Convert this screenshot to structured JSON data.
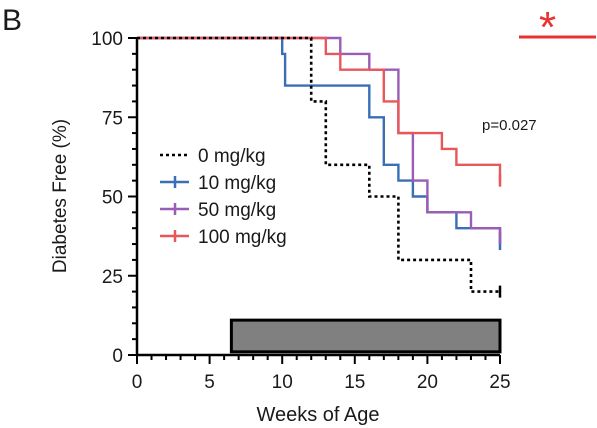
{
  "panel_label": "B",
  "significance_mark": "*",
  "colors": {
    "axis": "#000000",
    "dotted": "#000000",
    "blue": "#3a6fb5",
    "purple": "#9a5cb5",
    "red": "#e8575a",
    "star": "#e83232",
    "bar_fill": "#808080"
  },
  "chart_data": {
    "type": "line",
    "subtype": "kaplan-meier step",
    "title": "",
    "xlabel": "Weeks of Age",
    "ylabel": "Diabetes Free (%)",
    "xlim": [
      0,
      25
    ],
    "ylim": [
      0,
      100
    ],
    "x_ticks": [
      0,
      5,
      10,
      15,
      20,
      25
    ],
    "y_ticks": [
      0,
      25,
      50,
      75,
      100
    ],
    "x_tick_labels": [
      "0",
      "5",
      "10",
      "15",
      "20",
      "25"
    ],
    "y_tick_labels": [
      "0",
      "25",
      "50",
      "75",
      "100"
    ],
    "annotation": "p=0.027",
    "grid": false,
    "legend_position": "center-left",
    "series": [
      {
        "name": "0 mg/kg",
        "style": "dotted",
        "color": "#000000",
        "points": [
          [
            0,
            100
          ],
          [
            12,
            100
          ],
          [
            12,
            80
          ],
          [
            13,
            80
          ],
          [
            13,
            60
          ],
          [
            16,
            60
          ],
          [
            16,
            50
          ],
          [
            18,
            50
          ],
          [
            18,
            30
          ],
          [
            23,
            30
          ],
          [
            23,
            20
          ],
          [
            25,
            20
          ]
        ]
      },
      {
        "name": "10 mg/kg",
        "style": "solid",
        "color": "#3a6fb5",
        "points": [
          [
            0,
            100
          ],
          [
            10,
            100
          ],
          [
            10,
            95
          ],
          [
            10.2,
            95
          ],
          [
            10.2,
            85
          ],
          [
            16,
            85
          ],
          [
            16,
            75
          ],
          [
            17,
            75
          ],
          [
            17,
            60
          ],
          [
            18,
            60
          ],
          [
            18,
            55
          ],
          [
            19,
            55
          ],
          [
            19,
            50
          ],
          [
            20,
            50
          ],
          [
            20,
            45
          ],
          [
            22,
            45
          ],
          [
            22,
            40
          ],
          [
            25,
            40
          ],
          [
            25,
            35
          ]
        ]
      },
      {
        "name": "50 mg/kg",
        "style": "solid",
        "color": "#9a5cb5",
        "points": [
          [
            0,
            100
          ],
          [
            14,
            100
          ],
          [
            14,
            95
          ],
          [
            16,
            95
          ],
          [
            16,
            90
          ],
          [
            18,
            90
          ],
          [
            18,
            70
          ],
          [
            19,
            70
          ],
          [
            19,
            55
          ],
          [
            20,
            55
          ],
          [
            20,
            45
          ],
          [
            23,
            45
          ],
          [
            23,
            40
          ],
          [
            25,
            40
          ],
          [
            25,
            37
          ]
        ]
      },
      {
        "name": "100 mg/kg",
        "style": "solid",
        "color": "#e8575a",
        "points": [
          [
            0,
            100
          ],
          [
            13,
            100
          ],
          [
            13,
            95
          ],
          [
            14,
            95
          ],
          [
            14,
            90
          ],
          [
            17,
            90
          ],
          [
            17,
            80
          ],
          [
            18,
            80
          ],
          [
            18,
            70
          ],
          [
            21,
            70
          ],
          [
            21,
            65
          ],
          [
            22,
            65
          ],
          [
            22,
            60
          ],
          [
            25,
            60
          ],
          [
            25,
            55
          ]
        ]
      }
    ],
    "treatment_bar": {
      "x_start": 6.5,
      "x_end": 25,
      "y_start": 1,
      "y_end": 11,
      "label": ""
    }
  }
}
